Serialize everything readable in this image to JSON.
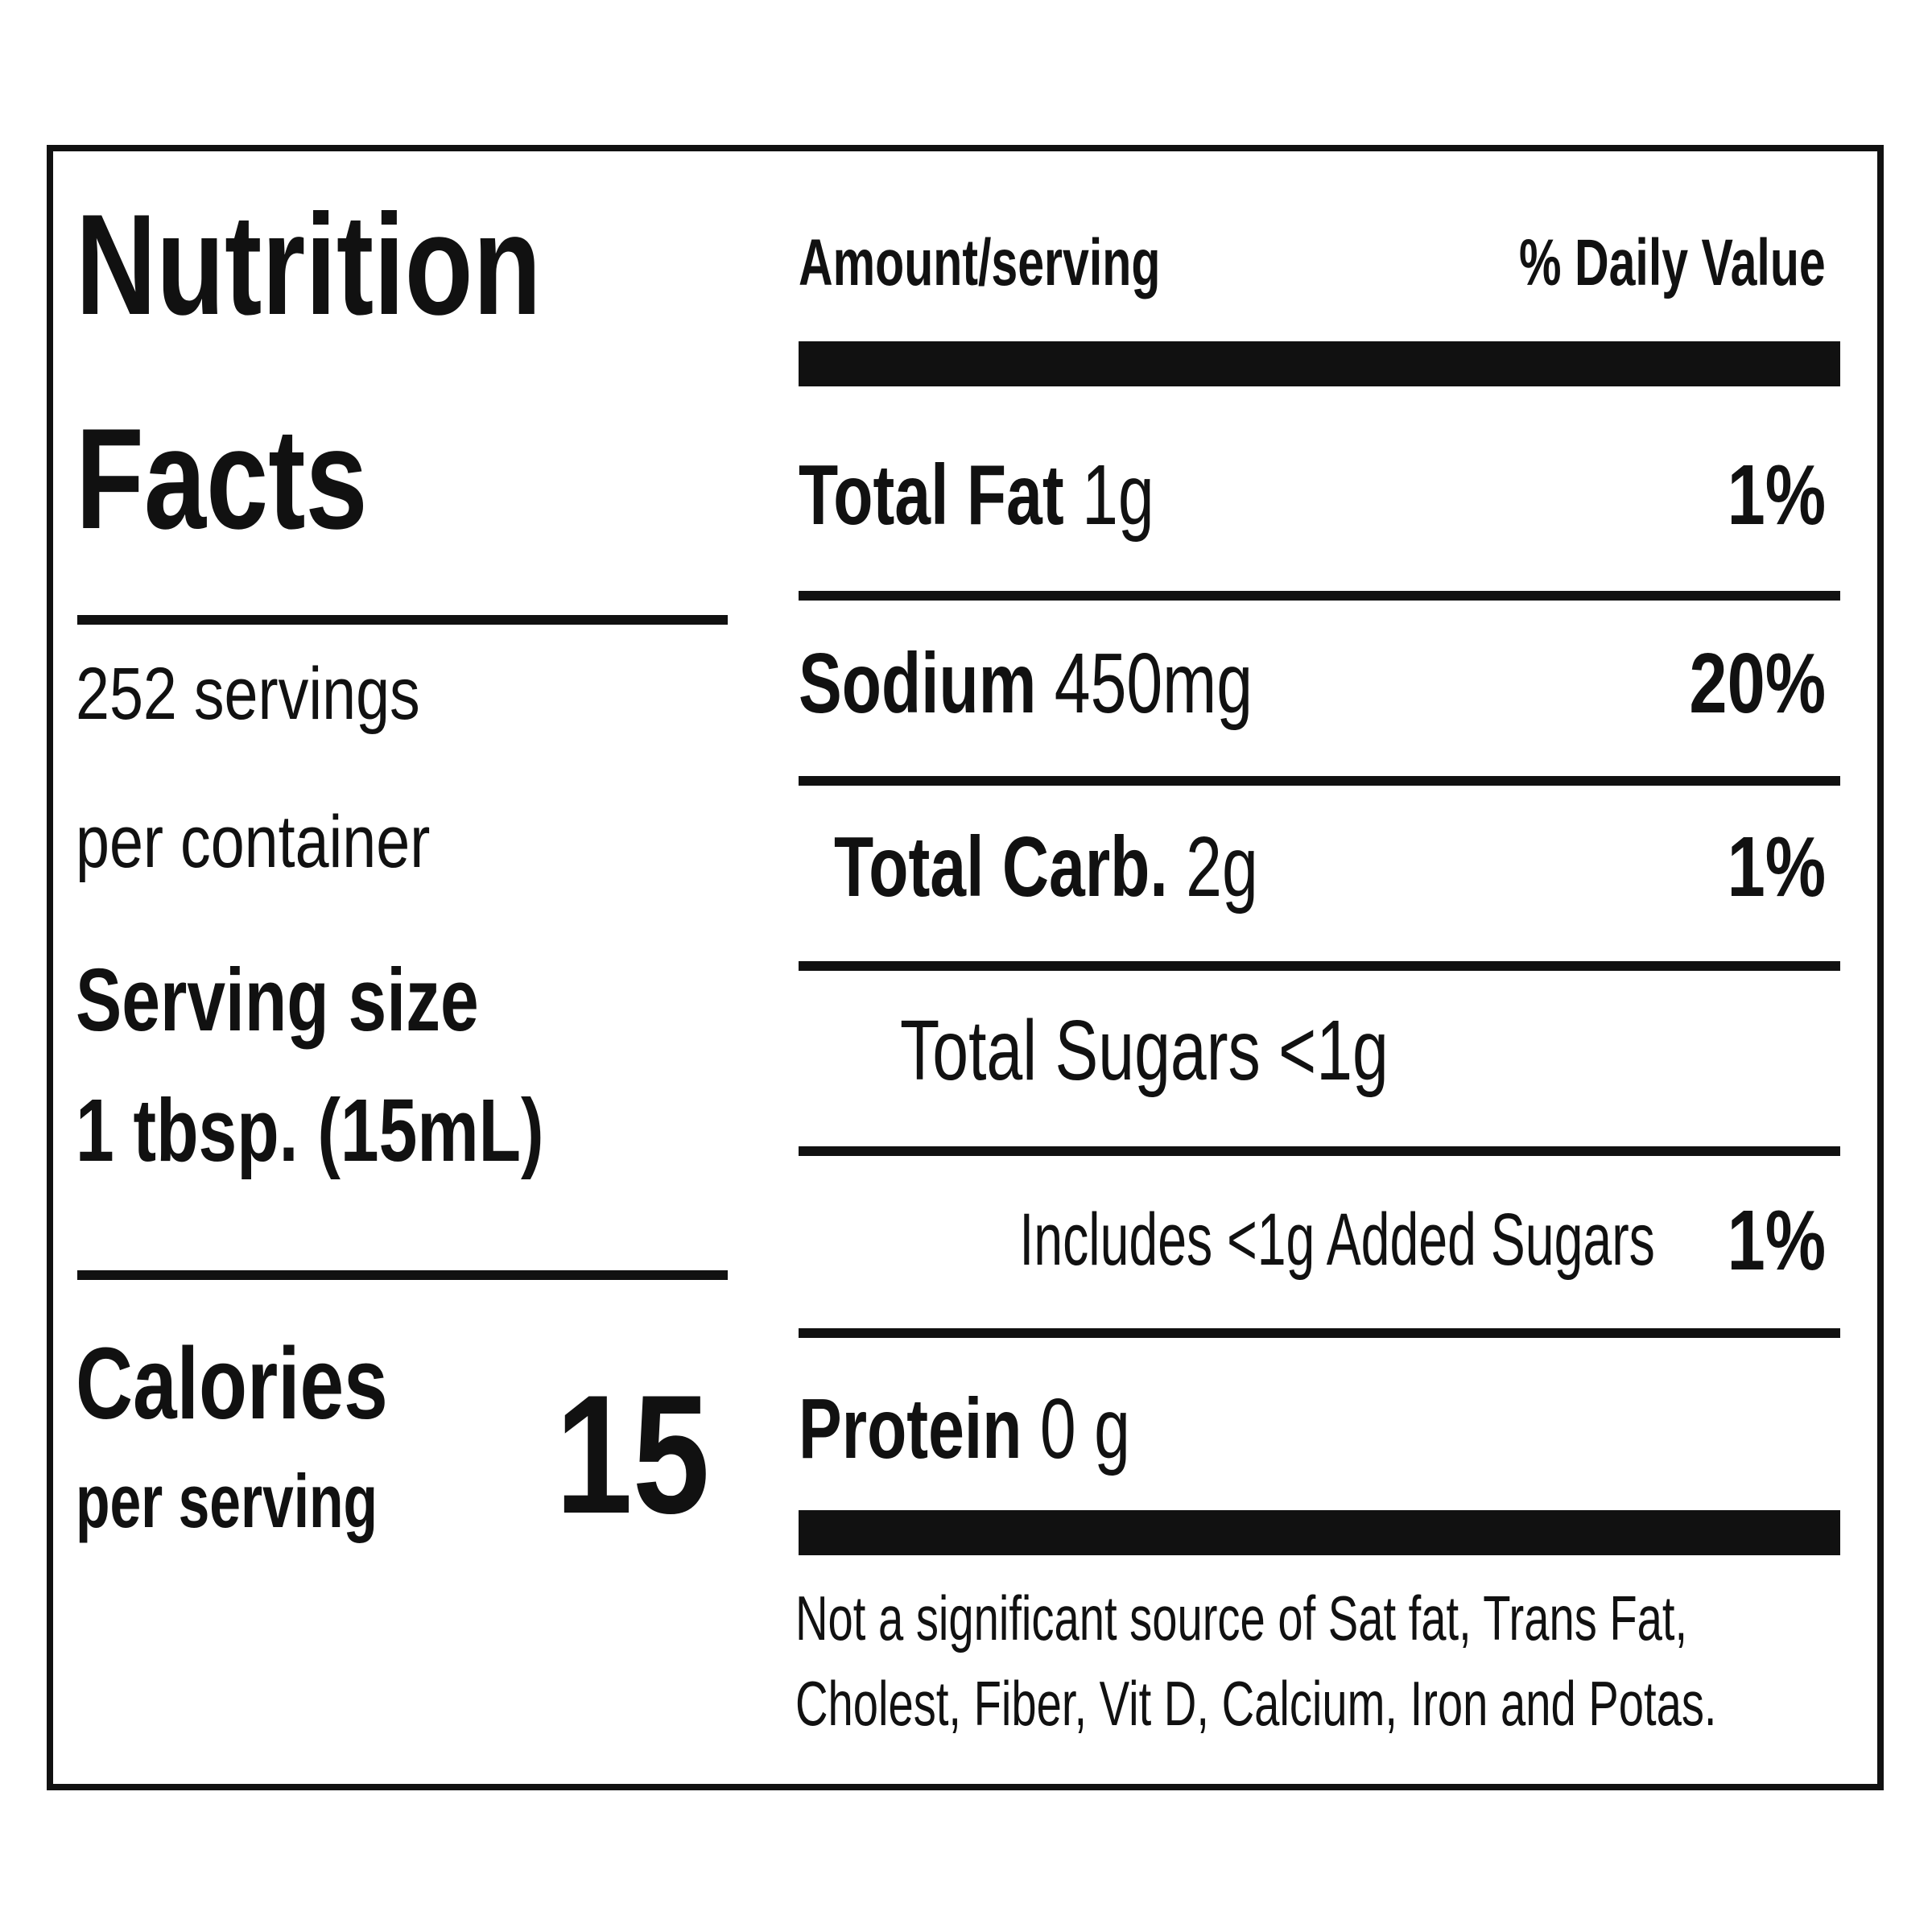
{
  "label": {
    "title_line1": "Nutrition",
    "title_line2": "Facts",
    "servings_line1": "252 servings",
    "servings_line2": "per container",
    "serving_size_label": "Serving size",
    "serving_size_value": "1 tbsp. (15mL)",
    "calories_label": "Calories",
    "calories_sub": "per serving",
    "calories_value": "15",
    "header_amount": "Amount/serving",
    "header_dv": "% Daily Value",
    "nutrients": [
      {
        "name": "Total Fat",
        "amount": "1g",
        "dv": "1%"
      },
      {
        "name": "Sodium",
        "amount": "450mg",
        "dv": "20%"
      },
      {
        "name": "Total Carb.",
        "amount": "2g",
        "dv": "1%"
      },
      {
        "name": "Total Sugars <1g"
      },
      {
        "name": "Includes <1g Added Sugars",
        "dv": "1%"
      },
      {
        "name": "Protein",
        "amount": "0 g"
      }
    ],
    "footnote_line1": "Not a significant source of Sat fat, Trans Fat,",
    "footnote_line2": "Cholest, Fiber, Vit D, Calcium, Iron and Potas."
  }
}
